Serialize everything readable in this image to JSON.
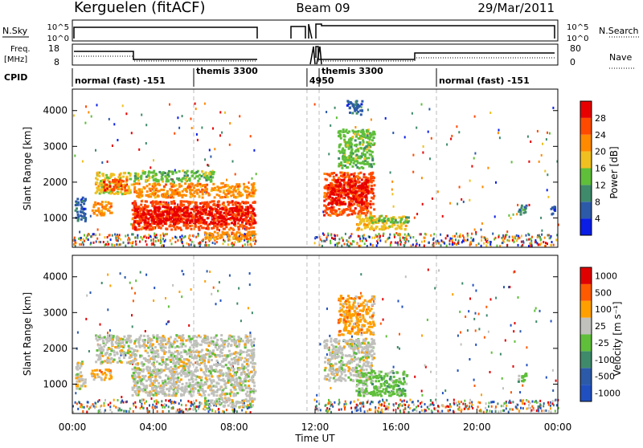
{
  "header": {
    "station": "Kerguelen (fitACF)",
    "beam": "Beam 09",
    "date": "29/Mar/2011"
  },
  "top_panel": {
    "nsky_label": "N.Sky",
    "nsky_ticks": [
      "10^5",
      "10^0"
    ],
    "nsearch_label": "N.Search",
    "nsearch_ticks": [
      "10^5",
      "10^0"
    ],
    "freq_label": "Freq.",
    "freq_unit": "[MHz]",
    "freq_ticks": [
      "18",
      "8"
    ],
    "nave_label": "Nave",
    "nave_ticks": [
      "80",
      "0"
    ],
    "cpid_label": "CPID",
    "cpid_segments": [
      {
        "label": "normal (fast) -151",
        "start_hr": 0.0,
        "end_hr": 6.0
      },
      {
        "label": "themis 3300",
        "start_hr": 6.0,
        "end_hr": 11.6
      },
      {
        "label": "4950",
        "start_hr": 11.6,
        "end_hr": 12.2
      },
      {
        "label": "themis 3300",
        "start_hr": 12.2,
        "end_hr": 18.0
      },
      {
        "label": "normal (fast) -151",
        "start_hr": 18.0,
        "end_hr": 24.0
      }
    ]
  },
  "chart_data": [
    {
      "type": "heatmap",
      "name": "power",
      "ylabel": "Slant Range [km]",
      "yticks": [
        1000,
        2000,
        3000,
        4000
      ],
      "ylim": [
        180,
        4600
      ],
      "xlim_hours": [
        0,
        24
      ],
      "colorbar_label": "Power [dB]",
      "colorbar_ticks": [
        "4",
        "8",
        "12",
        "16",
        "20",
        "24",
        "28"
      ],
      "colors": [
        "#0a1ee6",
        "#2c5aa8",
        "#3f8a6a",
        "#5fbf3a",
        "#f0c020",
        "#ff8a00",
        "#ff4a00",
        "#e80000"
      ],
      "regions": [
        {
          "t0": 0.1,
          "t1": 0.6,
          "r0": 900,
          "r1": 1600,
          "level": 1
        },
        {
          "t0": 0.9,
          "t1": 1.9,
          "r0": 1100,
          "r1": 1500,
          "level": 5
        },
        {
          "t0": 1.1,
          "t1": 2.9,
          "r0": 1700,
          "r1": 2300,
          "level": 4
        },
        {
          "t0": 1.5,
          "t1": 2.7,
          "r0": 1800,
          "r1": 2100,
          "level": 6
        },
        {
          "t0": 2.9,
          "t1": 9.0,
          "r0": 700,
          "r1": 1500,
          "level": 6
        },
        {
          "t0": 3.0,
          "t1": 9.0,
          "r0": 850,
          "r1": 1350,
          "level": 7
        },
        {
          "t0": 3.0,
          "t1": 9.0,
          "r0": 1600,
          "r1": 2000,
          "level": 5
        },
        {
          "t0": 3.0,
          "t1": 7.0,
          "r0": 2050,
          "r1": 2350,
          "level": 3
        },
        {
          "t0": 6.5,
          "t1": 9.0,
          "r0": 400,
          "r1": 650,
          "level": 5
        },
        {
          "t0": 12.4,
          "t1": 14.9,
          "r0": 1100,
          "r1": 2300,
          "level": 6
        },
        {
          "t0": 12.6,
          "t1": 14.6,
          "r0": 1400,
          "r1": 2100,
          "level": 7
        },
        {
          "t0": 13.1,
          "t1": 14.9,
          "r0": 2400,
          "r1": 3500,
          "level": 3
        },
        {
          "t0": 14.0,
          "t1": 16.5,
          "r0": 700,
          "r1": 1100,
          "level": 4
        },
        {
          "t0": 14.5,
          "t1": 16.6,
          "r0": 900,
          "r1": 1050,
          "level": 3
        },
        {
          "t0": 13.5,
          "t1": 14.3,
          "r0": 3900,
          "r1": 4300,
          "level": 1
        },
        {
          "t0": 22.0,
          "t1": 22.4,
          "r0": 1100,
          "r1": 1400,
          "level": 2
        },
        {
          "t0": 23.6,
          "t1": 23.9,
          "r0": 1100,
          "r1": 1400,
          "level": 1
        }
      ]
    },
    {
      "type": "heatmap",
      "name": "velocity",
      "ylabel": "Slant Range [km]",
      "xlabel": "Time UT",
      "yticks": [
        1000,
        2000,
        3000,
        4000
      ],
      "ylim": [
        180,
        4600
      ],
      "xticks": [
        "00:00",
        "04:00",
        "08:00",
        "12:00",
        "16:00",
        "20:00",
        "00:00"
      ],
      "xlim_hours": [
        0,
        24
      ],
      "colorbar_label": "Velocity [m s⁻¹]",
      "colorbar_ticks": [
        "1000",
        "500",
        "100",
        "25",
        "-25",
        "-100",
        "-500",
        "-1000"
      ],
      "colors": [
        "#2050c0",
        "#2c5aa8",
        "#3f8a6a",
        "#5fbf3a",
        "#c0c0bc",
        "#ffa000",
        "#ff5a00",
        "#e00000"
      ],
      "regions": [
        {
          "t0": 0.1,
          "t1": 0.6,
          "r0": 900,
          "r1": 1700,
          "level": 4
        },
        {
          "t0": 0.9,
          "t1": 1.9,
          "r0": 1150,
          "r1": 1450,
          "level": 5
        },
        {
          "t0": 1.1,
          "t1": 2.9,
          "r0": 1600,
          "r1": 2400,
          "level": 4
        },
        {
          "t0": 2.9,
          "t1": 9.0,
          "r0": 700,
          "r1": 2000,
          "level": 4
        },
        {
          "t0": 3.0,
          "t1": 9.0,
          "r0": 2050,
          "r1": 2400,
          "level": 4
        },
        {
          "t0": 6.5,
          "t1": 9.0,
          "r0": 400,
          "r1": 650,
          "level": 4
        },
        {
          "t0": 12.4,
          "t1": 14.9,
          "r0": 1100,
          "r1": 2300,
          "level": 4
        },
        {
          "t0": 13.1,
          "t1": 14.9,
          "r0": 2400,
          "r1": 3500,
          "level": 5
        },
        {
          "t0": 14.0,
          "t1": 16.5,
          "r0": 700,
          "r1": 1400,
          "level": 3
        },
        {
          "t0": 22.0,
          "t1": 22.4,
          "r0": 1100,
          "r1": 1400,
          "level": 3
        }
      ]
    }
  ]
}
